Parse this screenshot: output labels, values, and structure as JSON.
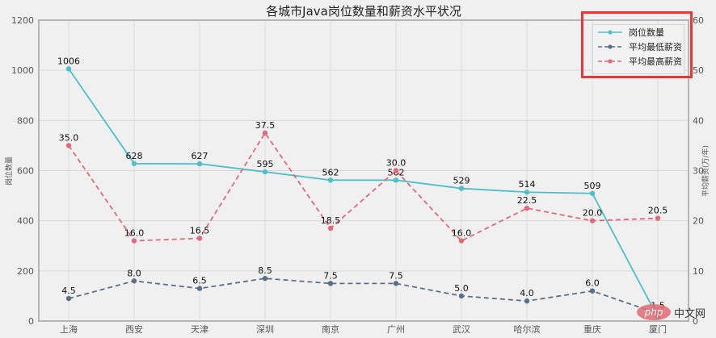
{
  "chart_data": {
    "type": "line",
    "title": "各城市Java岗位数量和薪资水平状况",
    "xlabel": "",
    "ylabel": "岗位数量",
    "y2label": "平均薪资(万/年)",
    "categories": [
      "上海",
      "西安",
      "天津",
      "深圳",
      "南京",
      "广州",
      "武汉",
      "哈尔滨",
      "重庆",
      "厦门"
    ],
    "ylim": [
      0,
      1200
    ],
    "yticks": [
      0,
      200,
      400,
      600,
      800,
      1000,
      1200
    ],
    "y2lim": [
      0,
      60
    ],
    "y2ticks": [
      0,
      10,
      20,
      30,
      40,
      50,
      60
    ],
    "grid": true,
    "legend_position": "upper right",
    "series": [
      {
        "name": "岗位数量",
        "axis": "left",
        "style": "solid",
        "color": "#4fbfc9",
        "values": [
          1006,
          628,
          627,
          595,
          562,
          562,
          529,
          514,
          509,
          15
        ],
        "labels": [
          "1006",
          "628",
          "627",
          "595",
          "562",
          "562",
          "529",
          "514",
          "509",
          ""
        ]
      },
      {
        "name": "平均最低薪资",
        "axis": "right",
        "style": "dashed",
        "color": "#5a7089",
        "values": [
          4.5,
          8.0,
          6.5,
          8.5,
          7.5,
          7.5,
          5.0,
          4.0,
          6.0,
          1.5
        ],
        "labels": [
          "4.5",
          "8.0",
          "6.5",
          "8.5",
          "7.5",
          "7.5",
          "5.0",
          "4.0",
          "6.0",
          "1.5"
        ]
      },
      {
        "name": "平均最高薪资",
        "axis": "right",
        "style": "dashed",
        "color": "#e06a7b",
        "values": [
          35.0,
          16.0,
          16.5,
          37.5,
          18.5,
          30.0,
          16.0,
          22.5,
          20.0,
          20.5
        ],
        "labels": [
          "35.0",
          "16.0",
          "16.5",
          "37.5",
          "18.5",
          "30.0",
          "16.0",
          "22.5",
          "20.0",
          "20.5"
        ]
      }
    ]
  },
  "legend": {
    "items": [
      {
        "label": "岗位数量",
        "color": "#4fbfc9",
        "dashed": false
      },
      {
        "label": "平均最低薪资",
        "color": "#5a7089",
        "dashed": true
      },
      {
        "label": "平均最高薪资",
        "color": "#e06a7b",
        "dashed": true
      }
    ]
  },
  "annotation": {
    "highlight_color": "#e53935"
  },
  "watermark": {
    "badge": "php",
    "text": "中文网"
  }
}
